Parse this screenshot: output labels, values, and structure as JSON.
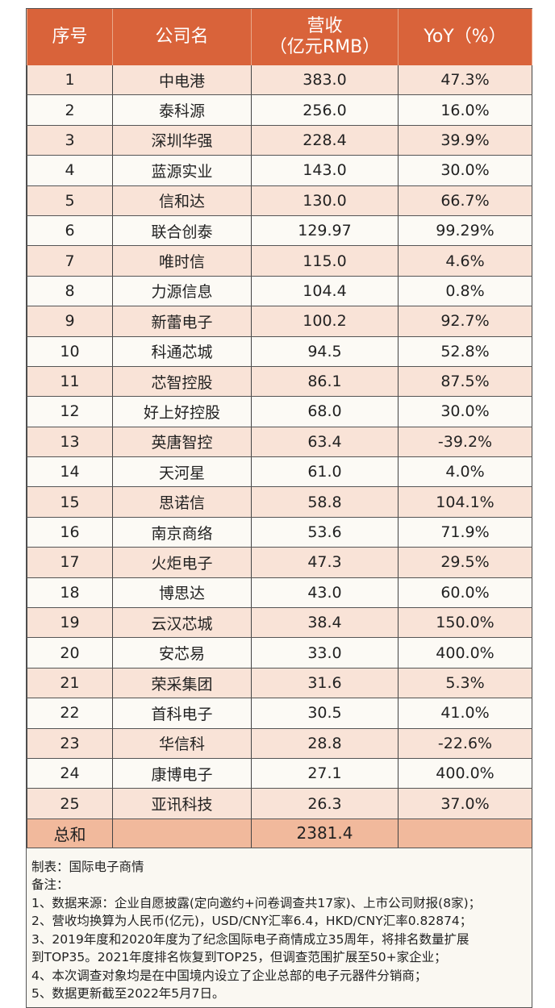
{
  "header": {
    "rank": "序号",
    "company": "公司名",
    "revenue_line1": "营收",
    "revenue_line2": "（亿元RMB）",
    "yoy": "YoY（%）"
  },
  "rows": [
    {
      "rank": "1",
      "company": "中电港",
      "revenue": "383.0",
      "yoy": "47.3%"
    },
    {
      "rank": "2",
      "company": "泰科源",
      "revenue": "256.0",
      "yoy": "16.0%"
    },
    {
      "rank": "3",
      "company": "深圳华强",
      "revenue": "228.4",
      "yoy": "39.9%"
    },
    {
      "rank": "4",
      "company": "蓝源实业",
      "revenue": "143.0",
      "yoy": "30.0%"
    },
    {
      "rank": "5",
      "company": "信和达",
      "revenue": "130.0",
      "yoy": "66.7%"
    },
    {
      "rank": "6",
      "company": "联合创泰",
      "revenue": "129.97",
      "yoy": "99.29%"
    },
    {
      "rank": "7",
      "company": "唯时信",
      "revenue": "115.0",
      "yoy": "4.6%"
    },
    {
      "rank": "8",
      "company": "力源信息",
      "revenue": "104.4",
      "yoy": "0.8%"
    },
    {
      "rank": "9",
      "company": "新蕾电子",
      "revenue": "100.2",
      "yoy": "92.7%"
    },
    {
      "rank": "10",
      "company": "科通芯城",
      "revenue": "94.5",
      "yoy": "52.8%"
    },
    {
      "rank": "11",
      "company": "芯智控股",
      "revenue": "86.1",
      "yoy": "87.5%"
    },
    {
      "rank": "12",
      "company": "好上好控股",
      "revenue": "68.0",
      "yoy": "30.0%"
    },
    {
      "rank": "13",
      "company": "英唐智控",
      "revenue": "63.4",
      "yoy": "-39.2%"
    },
    {
      "rank": "14",
      "company": "天河星",
      "revenue": "61.0",
      "yoy": "4.0%"
    },
    {
      "rank": "15",
      "company": "思诺信",
      "revenue": "58.8",
      "yoy": "104.1%"
    },
    {
      "rank": "16",
      "company": "南京商络",
      "revenue": "53.6",
      "yoy": "71.9%"
    },
    {
      "rank": "17",
      "company": "火炬电子",
      "revenue": "47.3",
      "yoy": "29.5%"
    },
    {
      "rank": "18",
      "company": "博思达",
      "revenue": "43.0",
      "yoy": "60.0%"
    },
    {
      "rank": "19",
      "company": "云汉芯城",
      "revenue": "38.4",
      "yoy": "150.0%"
    },
    {
      "rank": "20",
      "company": "安芯易",
      "revenue": "33.0",
      "yoy": "400.0%"
    },
    {
      "rank": "21",
      "company": "荣采集团",
      "revenue": "31.6",
      "yoy": "5.3%"
    },
    {
      "rank": "22",
      "company": "首科电子",
      "revenue": "30.5",
      "yoy": "41.0%"
    },
    {
      "rank": "23",
      "company": "华信科",
      "revenue": "28.8",
      "yoy": "-22.6%"
    },
    {
      "rank": "24",
      "company": "康博电子",
      "revenue": "27.1",
      "yoy": "400.0%"
    },
    {
      "rank": "25",
      "company": "亚讯科技",
      "revenue": "26.3",
      "yoy": "37.0%"
    }
  ],
  "total": {
    "label": "总和",
    "revenue": "2381.4"
  },
  "notes": [
    "制表：国际电子商情",
    "备注：",
    "1、数据来源：企业自愿披露(定向邀约+问卷调查共17家)、上市公司财报(8家)；",
    "2、营收均换算为人民币(亿元)，USD/CNY汇率6.4，HKD/CNY汇率0.82874；",
    "3、2019年度和2020年度为了纪念国际电子商情成立35周年，将排名数量扩展",
    "到TOP35。2021年度排名恢复到TOP25，但调查范围扩展至50+家企业；",
    "4、本次调查对象均是在中国境内设立了企业总部的电子元器件分销商；",
    "5、数据更新截至2022年5月7日。"
  ],
  "colors": {
    "header": "#d9633a",
    "row_odd": "#f9e3d7",
    "row_even": "#fcfaf5",
    "total": "#f1b99c"
  }
}
